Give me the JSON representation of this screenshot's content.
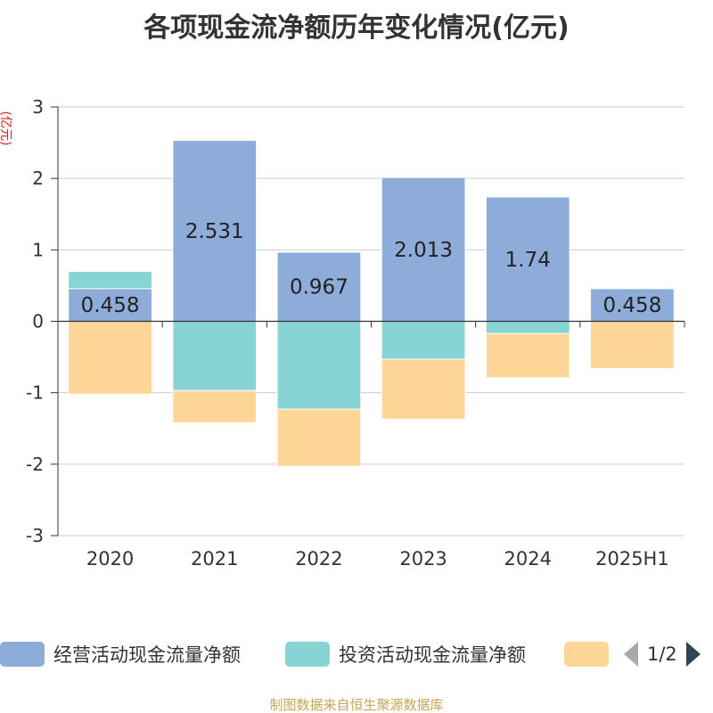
{
  "title": "各项现金流净额历年变化情况(亿元)",
  "source": "制图数据来自恒生聚源数据库",
  "pager": {
    "text": "1/2"
  },
  "colors": {
    "operating": "#8eacd9",
    "investing": "#86d4d4",
    "financing": "#fdd698"
  },
  "legend": [
    {
      "label": "经营活动现金流量净额",
      "color": "#8eacd9"
    },
    {
      "label": "投资活动现金流量净额",
      "color": "#86d4d4"
    },
    {
      "label": "",
      "color": "#fdd698"
    }
  ],
  "chart_data": {
    "type": "bar",
    "stacked": true,
    "categories": [
      "2020",
      "2021",
      "2022",
      "2023",
      "2024",
      "2025H1"
    ],
    "ylabel": "(亿元)",
    "ylim": [
      -3,
      3
    ],
    "yticks": [
      -3,
      -2,
      -1,
      0,
      1,
      2,
      3
    ],
    "grid": true,
    "legend_position": "bottom",
    "series": [
      {
        "name": "经营活动现金流量净额",
        "values": [
          0.458,
          2.531,
          0.967,
          2.013,
          1.74,
          0.458
        ],
        "labels": [
          "0.458",
          "2.531",
          "0.967",
          "2.013",
          "1.74",
          "0.458"
        ]
      },
      {
        "name": "投资活动现金流量净额",
        "values": [
          0.24,
          -0.97,
          -1.23,
          -0.53,
          -0.17,
          0.01
        ],
        "labels": []
      },
      {
        "name": "",
        "values": [
          -1.02,
          -0.45,
          -0.8,
          -0.84,
          -0.62,
          -0.66
        ],
        "labels": []
      }
    ]
  }
}
